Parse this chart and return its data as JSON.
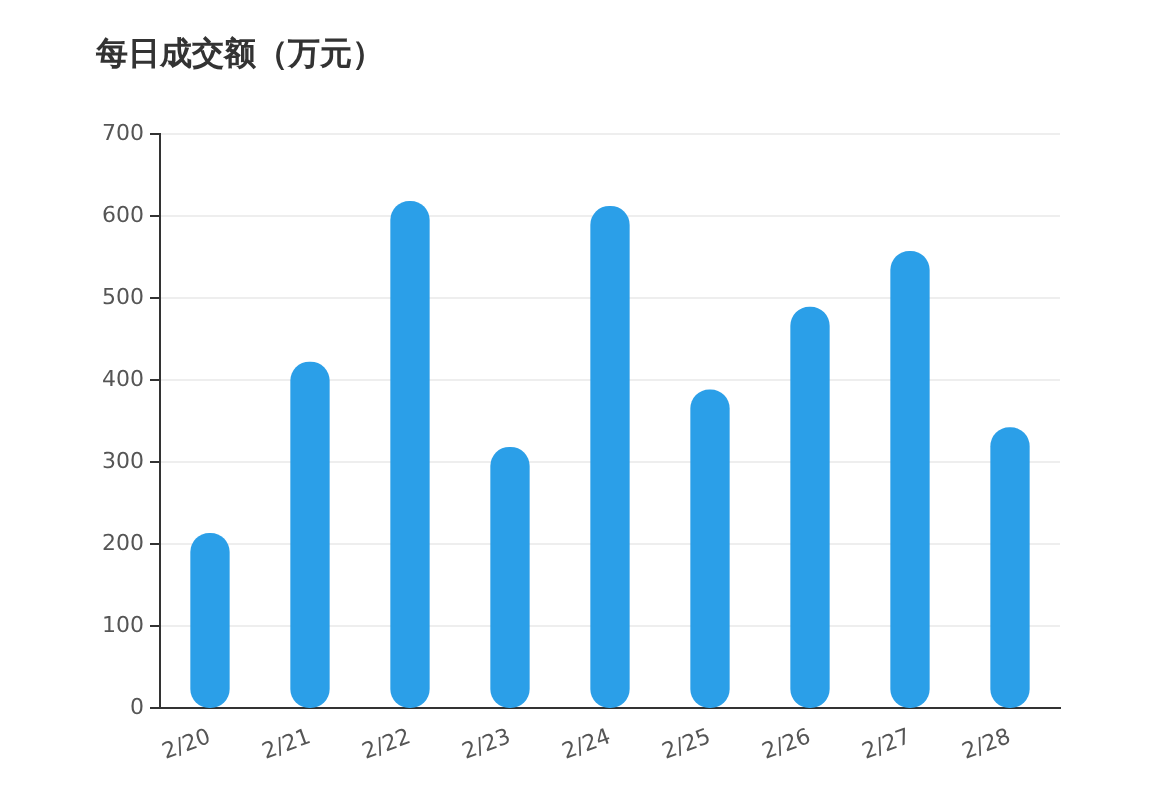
{
  "chart_data": {
    "type": "bar",
    "title": "每日成交额（万元）",
    "categories": [
      "2/20",
      "2/21",
      "2/22",
      "2/23",
      "2/24",
      "2/25",
      "2/26",
      "2/27",
      "2/28"
    ],
    "values": [
      213,
      422,
      618,
      318,
      612,
      388,
      489,
      557,
      342
    ],
    "color": "#2b9fe8",
    "ylim": [
      0,
      700
    ],
    "yticks": [
      0,
      100,
      200,
      300,
      400,
      500,
      600,
      700
    ],
    "grid": "y"
  }
}
